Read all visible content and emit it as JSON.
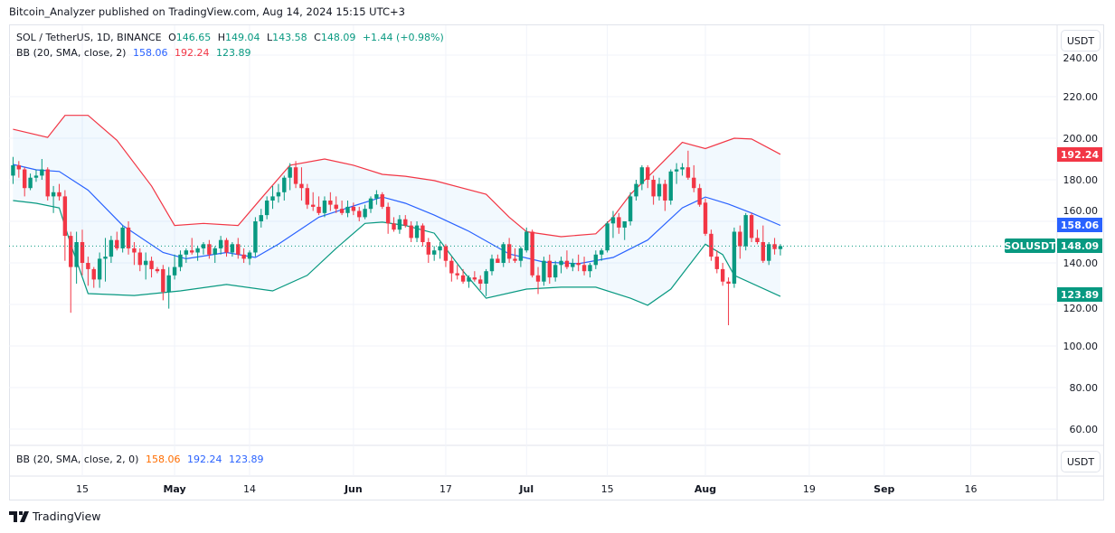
{
  "publisher_line": "Bitcoin_Analyzer published on TradingView.com, Aug 14, 2024 15:15 UTC+3",
  "legend": {
    "symbol": "SOL / TetherUS, 1D, BINANCE",
    "o_label": "O",
    "o": "146.65",
    "h_label": "H",
    "h": "149.04",
    "l_label": "L",
    "l": "143.58",
    "c_label": "C",
    "c": "148.09",
    "change": "+1.44 (+0.98%)",
    "bb_title": "BB (20, SMA, close, 2)",
    "bb_basis": "158.06",
    "bb_upper": "192.24",
    "bb_lower": "123.89"
  },
  "lower_pane": {
    "bb_title": "BB (20, SMA, close, 2, 0)",
    "v1": "158.06",
    "v2": "192.24",
    "v3": "123.89"
  },
  "currency_button": "USDT",
  "price_tags": {
    "symbol": "SOLUSDT",
    "last": "148.09",
    "upper": "192.24",
    "basis": "158.06",
    "lower": "123.89"
  },
  "branding": "TradingView",
  "colors": {
    "up": "#089981",
    "down": "#f23645",
    "basis": "#2962ff",
    "upper": "#f23645",
    "lower": "#089981",
    "fill": "#2196f3",
    "axis_text": "#131722"
  },
  "chart_data": {
    "type": "candlestick",
    "title": "SOL / TetherUS, 1D, BINANCE",
    "ylim": [
      55,
      245
    ],
    "y_ticks": [
      "60.00",
      "80.00",
      "100.00",
      "120.00",
      "140.00",
      "160.00",
      "180.00",
      "200.00",
      "220.00",
      "240.00"
    ],
    "x_ticks": [
      {
        "label": "15",
        "date": "2024-04-15",
        "bold": false
      },
      {
        "label": "May",
        "date": "2024-05-01",
        "bold": true
      },
      {
        "label": "14",
        "date": "2024-05-14",
        "bold": false
      },
      {
        "label": "Jun",
        "date": "2024-06-01",
        "bold": true
      },
      {
        "label": "17",
        "date": "2024-06-17",
        "bold": false
      },
      {
        "label": "Jul",
        "date": "2024-07-01",
        "bold": true
      },
      {
        "label": "15",
        "date": "2024-07-15",
        "bold": false
      },
      {
        "label": "Aug",
        "date": "2024-08-01",
        "bold": true
      },
      {
        "label": "19",
        "date": "2024-08-19",
        "bold": false
      },
      {
        "label": "Sep",
        "date": "2024-09-01",
        "bold": true
      },
      {
        "label": "16",
        "date": "2024-09-16",
        "bold": false
      }
    ],
    "grid": true,
    "candles_columns": [
      "date",
      "open",
      "high",
      "low",
      "close"
    ],
    "candles": [
      [
        "2024-04-03",
        182,
        191,
        178,
        187
      ],
      [
        "2024-04-04",
        187,
        189,
        181,
        185
      ],
      [
        "2024-04-05",
        185,
        186,
        172,
        176
      ],
      [
        "2024-04-06",
        176,
        183,
        175,
        181
      ],
      [
        "2024-04-07",
        181,
        185,
        179,
        182
      ],
      [
        "2024-04-08",
        182,
        190,
        180,
        185
      ],
      [
        "2024-04-09",
        185,
        186,
        170,
        172
      ],
      [
        "2024-04-10",
        172,
        177,
        164,
        174
      ],
      [
        "2024-04-11",
        174,
        178,
        170,
        172
      ],
      [
        "2024-04-12",
        172,
        175,
        141,
        153
      ],
      [
        "2024-04-13",
        153,
        155,
        116,
        138
      ],
      [
        "2024-04-14",
        138,
        155,
        130,
        150
      ],
      [
        "2024-04-15",
        150,
        156,
        134,
        140
      ],
      [
        "2024-04-16",
        140,
        143,
        129,
        137
      ],
      [
        "2024-04-17",
        137,
        138,
        128,
        132
      ],
      [
        "2024-04-18",
        132,
        145,
        128,
        142
      ],
      [
        "2024-04-19",
        142,
        152,
        131,
        143
      ],
      [
        "2024-04-20",
        143,
        153,
        140,
        151
      ],
      [
        "2024-04-21",
        151,
        155,
        146,
        147
      ],
      [
        "2024-04-22",
        147,
        158,
        145,
        157
      ],
      [
        "2024-04-23",
        157,
        160,
        144,
        147
      ],
      [
        "2024-04-24",
        147,
        150,
        139,
        145
      ],
      [
        "2024-04-25",
        145,
        147,
        136,
        139
      ],
      [
        "2024-04-26",
        139,
        145,
        132,
        141
      ],
      [
        "2024-04-27",
        141,
        143,
        133,
        137
      ],
      [
        "2024-04-28",
        137,
        138,
        135,
        136
      ],
      [
        "2024-04-29",
        137,
        139,
        122,
        126
      ],
      [
        "2024-04-30",
        126,
        138,
        118,
        134
      ],
      [
        "2024-05-01",
        134,
        144,
        132,
        138
      ],
      [
        "2024-05-02",
        138,
        146,
        136,
        144
      ],
      [
        "2024-05-03",
        144,
        147,
        140,
        146
      ],
      [
        "2024-05-04",
        146,
        152,
        144,
        145
      ],
      [
        "2024-05-05",
        145,
        148,
        141,
        147
      ],
      [
        "2024-05-06",
        147,
        150,
        144,
        149
      ],
      [
        "2024-05-07",
        149,
        151,
        142,
        144
      ],
      [
        "2024-05-08",
        144,
        148,
        140,
        147
      ],
      [
        "2024-05-09",
        147,
        153,
        144,
        151
      ],
      [
        "2024-05-10",
        151,
        152,
        143,
        145
      ],
      [
        "2024-05-11",
        145,
        150,
        143,
        149
      ],
      [
        "2024-05-12",
        149,
        152,
        142,
        144
      ],
      [
        "2024-05-13",
        144,
        147,
        140,
        142
      ],
      [
        "2024-05-14",
        142,
        146,
        139,
        145
      ],
      [
        "2024-05-15",
        145,
        162,
        143,
        160
      ],
      [
        "2024-05-16",
        160,
        166,
        157,
        163
      ],
      [
        "2024-05-17",
        163,
        172,
        161,
        170
      ],
      [
        "2024-05-18",
        170,
        177,
        166,
        172
      ],
      [
        "2024-05-19",
        172,
        178,
        169,
        174
      ],
      [
        "2024-05-20",
        174,
        182,
        170,
        181
      ],
      [
        "2024-05-21",
        181,
        188,
        175,
        186
      ],
      [
        "2024-05-22",
        186,
        189,
        176,
        178
      ],
      [
        "2024-05-23",
        178,
        186,
        170,
        176
      ],
      [
        "2024-05-24",
        176,
        178,
        166,
        168
      ],
      [
        "2024-05-25",
        168,
        174,
        165,
        167
      ],
      [
        "2024-05-26",
        167,
        172,
        163,
        164
      ],
      [
        "2024-05-27",
        164,
        172,
        162,
        170
      ],
      [
        "2024-05-28",
        170,
        174,
        165,
        168
      ],
      [
        "2024-05-29",
        168,
        172,
        164,
        166
      ],
      [
        "2024-05-30",
        166,
        170,
        163,
        164
      ],
      [
        "2024-05-31",
        164,
        170,
        162,
        167
      ],
      [
        "2024-06-01",
        167,
        169,
        163,
        165
      ],
      [
        "2024-06-02",
        165,
        167,
        160,
        162
      ],
      [
        "2024-06-03",
        162,
        168,
        161,
        166
      ],
      [
        "2024-06-04",
        166,
        172,
        164,
        171
      ],
      [
        "2024-06-05",
        171,
        175,
        168,
        173
      ],
      [
        "2024-06-06",
        173,
        174,
        166,
        167
      ],
      [
        "2024-06-07",
        167,
        169,
        154,
        159
      ],
      [
        "2024-06-08",
        159,
        162,
        155,
        156
      ],
      [
        "2024-06-09",
        156,
        163,
        154,
        161
      ],
      [
        "2024-06-10",
        161,
        163,
        157,
        158
      ],
      [
        "2024-06-11",
        158,
        160,
        150,
        152
      ],
      [
        "2024-06-12",
        152,
        160,
        150,
        158
      ],
      [
        "2024-06-13",
        158,
        159,
        148,
        150
      ],
      [
        "2024-06-14",
        150,
        152,
        140,
        144
      ],
      [
        "2024-06-15",
        144,
        148,
        141,
        146
      ],
      [
        "2024-06-16",
        146,
        150,
        142,
        148
      ],
      [
        "2024-06-17",
        148,
        149,
        138,
        141
      ],
      [
        "2024-06-18",
        141,
        143,
        131,
        135
      ],
      [
        "2024-06-19",
        135,
        139,
        132,
        134
      ],
      [
        "2024-06-20",
        134,
        137,
        130,
        131
      ],
      [
        "2024-06-21",
        131,
        134,
        128,
        133
      ],
      [
        "2024-06-22",
        133,
        136,
        131,
        132
      ],
      [
        "2024-06-23",
        132,
        134,
        127,
        130
      ],
      [
        "2024-06-24",
        130,
        137,
        124,
        136
      ],
      [
        "2024-06-25",
        136,
        144,
        134,
        142
      ],
      [
        "2024-06-26",
        142,
        144,
        140,
        140
      ],
      [
        "2024-06-27",
        140,
        150,
        138,
        149
      ],
      [
        "2024-06-28",
        149,
        152,
        140,
        142
      ],
      [
        "2024-06-29",
        142,
        147,
        140,
        141
      ],
      [
        "2024-06-30",
        141,
        148,
        138,
        147
      ],
      [
        "2024-07-01",
        146,
        157,
        145,
        155
      ],
      [
        "2024-07-02",
        155,
        156,
        133,
        134
      ],
      [
        "2024-07-03",
        134,
        138,
        125,
        131
      ],
      [
        "2024-07-04",
        131,
        143,
        129,
        141
      ],
      [
        "2024-07-05",
        141,
        144,
        130,
        133
      ],
      [
        "2024-07-06",
        133,
        141,
        131,
        139
      ],
      [
        "2024-07-07",
        139,
        143,
        135,
        141
      ],
      [
        "2024-07-08",
        141,
        146,
        137,
        138
      ],
      [
        "2024-07-09",
        138,
        142,
        136,
        140
      ],
      [
        "2024-07-10",
        140,
        144,
        136,
        139
      ],
      [
        "2024-07-11",
        139,
        143,
        134,
        136
      ],
      [
        "2024-07-12",
        136,
        140,
        133,
        139
      ],
      [
        "2024-07-13",
        139,
        146,
        137,
        144
      ],
      [
        "2024-07-14",
        144,
        147,
        141,
        146
      ],
      [
        "2024-07-15",
        146,
        160,
        145,
        159
      ],
      [
        "2024-07-16",
        159,
        165,
        152,
        162
      ],
      [
        "2024-07-17",
        162,
        164,
        154,
        157
      ],
      [
        "2024-07-18",
        157,
        160,
        151,
        160
      ],
      [
        "2024-07-19",
        160,
        174,
        158,
        172
      ],
      [
        "2024-07-20",
        172,
        180,
        170,
        178
      ],
      [
        "2024-07-21",
        178,
        187,
        175,
        186
      ],
      [
        "2024-07-22",
        186,
        187,
        176,
        180
      ],
      [
        "2024-07-23",
        180,
        182,
        168,
        172
      ],
      [
        "2024-07-24",
        172,
        181,
        170,
        178
      ],
      [
        "2024-07-25",
        178,
        180,
        165,
        170
      ],
      [
        "2024-07-26",
        170,
        185,
        168,
        184
      ],
      [
        "2024-07-27",
        184,
        188,
        178,
        185
      ],
      [
        "2024-07-28",
        185,
        188,
        182,
        186
      ],
      [
        "2024-07-29",
        186,
        194,
        180,
        181
      ],
      [
        "2024-07-30",
        181,
        187,
        174,
        176
      ],
      [
        "2024-07-31",
        176,
        178,
        167,
        168
      ],
      [
        "2024-08-01",
        169,
        171,
        153,
        154
      ],
      [
        "2024-08-02",
        154,
        156,
        141,
        143
      ],
      [
        "2024-08-03",
        143,
        146,
        135,
        137
      ],
      [
        "2024-08-04",
        137,
        140,
        129,
        131
      ],
      [
        "2024-08-05",
        131,
        133,
        110,
        130
      ],
      [
        "2024-08-06",
        130,
        157,
        128,
        155
      ],
      [
        "2024-08-07",
        155,
        158,
        142,
        148
      ],
      [
        "2024-08-08",
        148,
        164,
        146,
        163
      ],
      [
        "2024-08-09",
        163,
        164,
        150,
        152
      ],
      [
        "2024-08-10",
        152,
        156,
        149,
        150
      ],
      [
        "2024-08-11",
        150,
        158,
        140,
        141
      ],
      [
        "2024-08-12",
        141,
        150,
        139,
        149
      ],
      [
        "2024-08-13",
        149,
        152,
        144,
        146.65
      ],
      [
        "2024-08-14",
        146.65,
        149.04,
        143.58,
        148.09
      ]
    ],
    "bollinger": {
      "upper": [
        [
          "2024-04-03",
          204.3
        ],
        [
          "2024-04-09",
          200.4
        ],
        [
          "2024-04-12",
          211
        ],
        [
          "2024-04-16",
          211
        ],
        [
          "2024-04-21",
          199
        ],
        [
          "2024-04-27",
          177
        ],
        [
          "2024-05-01",
          158
        ],
        [
          "2024-05-06",
          159
        ],
        [
          "2024-05-12",
          158
        ],
        [
          "2024-05-16",
          171
        ],
        [
          "2024-05-21",
          187
        ],
        [
          "2024-05-27",
          190
        ],
        [
          "2024-06-01",
          187
        ],
        [
          "2024-06-06",
          182.6
        ],
        [
          "2024-06-10",
          181.7
        ],
        [
          "2024-06-15",
          179.6
        ],
        [
          "2024-06-24",
          173
        ],
        [
          "2024-06-28",
          162
        ],
        [
          "2024-07-01",
          155
        ],
        [
          "2024-07-07",
          152.6
        ],
        [
          "2024-07-13",
          154
        ],
        [
          "2024-07-16",
          162
        ],
        [
          "2024-07-19",
          173
        ],
        [
          "2024-07-23",
          184
        ],
        [
          "2024-07-28",
          198
        ],
        [
          "2024-08-01",
          195
        ],
        [
          "2024-08-06",
          200
        ],
        [
          "2024-08-09",
          199.6
        ],
        [
          "2024-08-14",
          192.24
        ]
      ],
      "basis": [
        [
          "2024-04-03",
          187.4
        ],
        [
          "2024-04-07",
          184.8
        ],
        [
          "2024-04-11",
          184
        ],
        [
          "2024-04-16",
          175
        ],
        [
          "2024-04-22",
          158
        ],
        [
          "2024-04-29",
          145
        ],
        [
          "2024-05-03",
          142
        ],
        [
          "2024-05-10",
          145
        ],
        [
          "2024-05-15",
          142.6
        ],
        [
          "2024-05-19",
          149
        ],
        [
          "2024-05-26",
          162
        ],
        [
          "2024-06-01",
          167.4
        ],
        [
          "2024-06-06",
          171.7
        ],
        [
          "2024-06-10",
          168.7
        ],
        [
          "2024-06-15",
          163
        ],
        [
          "2024-06-21",
          155.2
        ],
        [
          "2024-06-28",
          144.3
        ],
        [
          "2024-07-04",
          140.4
        ],
        [
          "2024-07-10",
          139.6
        ],
        [
          "2024-07-16",
          142.6
        ],
        [
          "2024-07-22",
          151
        ],
        [
          "2024-07-28",
          166.5
        ],
        [
          "2024-08-01",
          171.7
        ],
        [
          "2024-08-05",
          168.3
        ],
        [
          "2024-08-09",
          164
        ],
        [
          "2024-08-14",
          158.06
        ]
      ],
      "lower": [
        [
          "2024-04-03",
          170
        ],
        [
          "2024-04-07",
          168.7
        ],
        [
          "2024-04-11",
          166.5
        ],
        [
          "2024-04-13",
          149
        ],
        [
          "2024-04-16",
          125.2
        ],
        [
          "2024-04-24",
          124.3
        ],
        [
          "2024-05-02",
          126.5
        ],
        [
          "2024-05-10",
          129.6
        ],
        [
          "2024-05-18",
          126.5
        ],
        [
          "2024-05-24",
          134
        ],
        [
          "2024-05-29",
          147
        ],
        [
          "2024-06-03",
          159
        ],
        [
          "2024-06-06",
          159.6
        ],
        [
          "2024-06-10",
          158
        ],
        [
          "2024-06-15",
          154.3
        ],
        [
          "2024-06-20",
          136
        ],
        [
          "2024-06-24",
          123
        ],
        [
          "2024-07-01",
          127.4
        ],
        [
          "2024-07-07",
          128.3
        ],
        [
          "2024-07-13",
          128.3
        ],
        [
          "2024-07-19",
          123
        ],
        [
          "2024-07-22",
          119.6
        ],
        [
          "2024-07-26",
          127.4
        ],
        [
          "2024-08-01",
          149
        ],
        [
          "2024-08-04",
          144
        ],
        [
          "2024-08-06",
          134
        ],
        [
          "2024-08-14",
          123.89
        ]
      ]
    }
  }
}
